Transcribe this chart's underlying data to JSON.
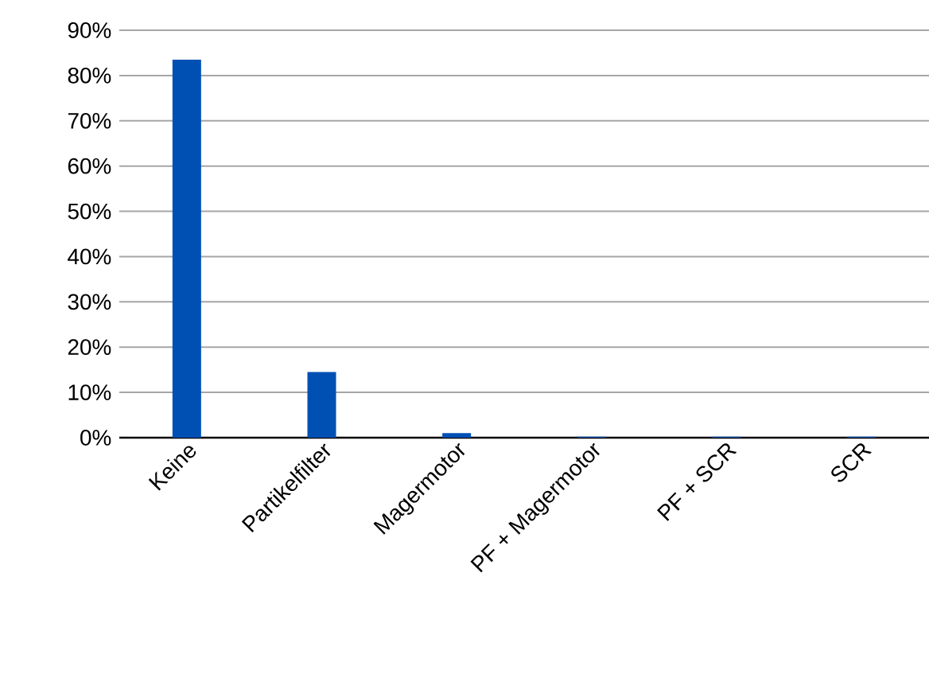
{
  "chart_data": {
    "type": "bar",
    "categories": [
      "Keine",
      "Partikelfilter",
      "Magermotor",
      "PF + Magermotor",
      "PF + SCR",
      "SCR"
    ],
    "values": [
      83.5,
      14.5,
      1.0,
      0.2,
      0.2,
      0.2
    ],
    "color": "#0050b4",
    "ylim": [
      0,
      90
    ],
    "yticks": [
      {
        "value": 0,
        "label": "0%"
      },
      {
        "value": 10,
        "label": "10%"
      },
      {
        "value": 20,
        "label": "20%"
      },
      {
        "value": 30,
        "label": "30%"
      },
      {
        "value": 40,
        "label": "40%"
      },
      {
        "value": 50,
        "label": "50%"
      },
      {
        "value": 60,
        "label": "60%"
      },
      {
        "value": 70,
        "label": "70%"
      },
      {
        "value": 80,
        "label": "80%"
      },
      {
        "value": 90,
        "label": "90%"
      }
    ],
    "grid": "y"
  }
}
